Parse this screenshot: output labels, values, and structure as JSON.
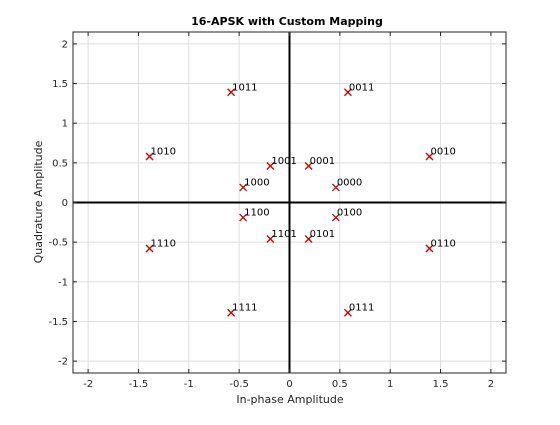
{
  "chart_data": {
    "type": "scatter",
    "title": "16-APSK with Custom Mapping",
    "xlabel": "In-phase Amplitude",
    "ylabel": "Quadrature Amplitude",
    "xlim": [
      -2.15,
      2.15
    ],
    "ylim": [
      -2.15,
      2.15
    ],
    "xticks": [
      -2,
      -1.5,
      -1,
      -0.5,
      0,
      0.5,
      1,
      1.5,
      2
    ],
    "yticks": [
      -2,
      -1.5,
      -1,
      -0.5,
      0,
      0.5,
      1,
      1.5,
      2
    ],
    "xtick_labels": [
      "-2",
      "-1.5",
      "-1",
      "-0.5",
      "0",
      "0.5",
      "1",
      "1.5",
      "2"
    ],
    "ytick_labels": [
      "-2",
      "-1.5",
      "-1",
      "-0.5",
      "0",
      "0.5",
      "1",
      "1.5",
      "2"
    ],
    "grid": true,
    "marker": "x",
    "marker_color": "#cc0000",
    "points": [
      {
        "x": 0.46,
        "y": 0.19,
        "label": "0000"
      },
      {
        "x": 0.19,
        "y": 0.46,
        "label": "0001"
      },
      {
        "x": 1.39,
        "y": 0.58,
        "label": "0010"
      },
      {
        "x": 0.58,
        "y": 1.39,
        "label": "0011"
      },
      {
        "x": 0.46,
        "y": -0.19,
        "label": "0100"
      },
      {
        "x": 0.19,
        "y": -0.46,
        "label": "0101"
      },
      {
        "x": 1.39,
        "y": -0.58,
        "label": "0110"
      },
      {
        "x": 0.58,
        "y": -1.39,
        "label": "0111"
      },
      {
        "x": -0.46,
        "y": 0.19,
        "label": "1000"
      },
      {
        "x": -0.19,
        "y": 0.46,
        "label": "1001"
      },
      {
        "x": -1.39,
        "y": 0.58,
        "label": "1010"
      },
      {
        "x": -0.58,
        "y": 1.39,
        "label": "1011"
      },
      {
        "x": -0.46,
        "y": -0.19,
        "label": "1100"
      },
      {
        "x": -0.19,
        "y": -0.46,
        "label": "1101"
      },
      {
        "x": -1.39,
        "y": -0.58,
        "label": "1110"
      },
      {
        "x": -0.58,
        "y": -1.39,
        "label": "1111"
      }
    ]
  }
}
